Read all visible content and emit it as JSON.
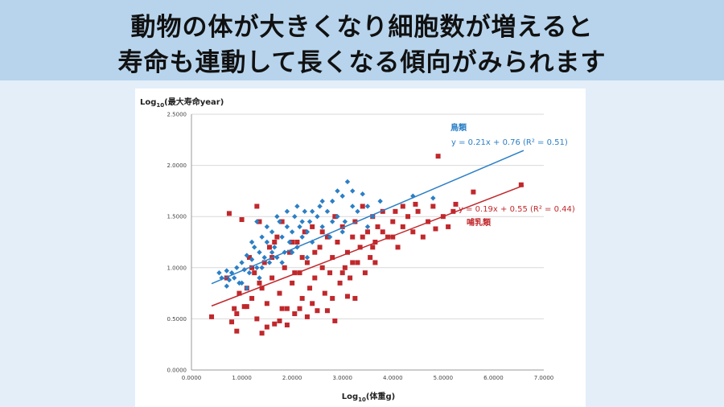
{
  "banner": {
    "line1": "動物の体が大きくなり細胞数が増えると",
    "line2": "寿命も連動して長くなる傾向がみられます"
  },
  "colors": {
    "bird": "#2b7fc6",
    "mammal": "#c0282c",
    "grid": "#d9d9d9"
  },
  "chart_data": {
    "type": "scatter",
    "ylabel_prefix": "Log",
    "ylabel_sub": "10",
    "ylabel_text": "(最大寿命year)",
    "xlabel_prefix": "Log",
    "xlabel_sub": "10",
    "xlabel_text": "(体重g)",
    "xlim": [
      0,
      7
    ],
    "ylim": [
      0,
      2.5
    ],
    "xticks": [
      "0.0000",
      "1.0000",
      "2.0000",
      "3.0000",
      "4.0000",
      "5.0000",
      "6.0000",
      "7.0000"
    ],
    "yticks": [
      "0.0000",
      "0.5000",
      "1.0000",
      "1.5000",
      "2.0000",
      "2.5000"
    ],
    "grid": "horizontal",
    "series": [
      {
        "name": "鳥類",
        "marker": "diamond",
        "equation": "y = 0.21x + 0.76 (R² = 0.51)",
        "trend": {
          "slope": 0.21,
          "intercept": 0.76,
          "x0": 0.4,
          "x1": 6.6
        },
        "points": [
          [
            0.55,
            0.95
          ],
          [
            0.6,
            0.9
          ],
          [
            0.7,
            0.97
          ],
          [
            0.75,
            0.88
          ],
          [
            0.8,
            0.95
          ],
          [
            0.85,
            0.9
          ],
          [
            0.9,
            1.0
          ],
          [
            0.95,
            0.85
          ],
          [
            1.0,
            1.05
          ],
          [
            1.05,
            0.98
          ],
          [
            1.1,
            1.12
          ],
          [
            1.15,
            0.95
          ],
          [
            1.2,
            1.08
          ],
          [
            1.25,
            1.2
          ],
          [
            1.3,
            1.0
          ],
          [
            1.35,
            1.15
          ],
          [
            1.4,
            1.3
          ],
          [
            1.45,
            1.1
          ],
          [
            1.5,
            1.25
          ],
          [
            1.55,
            1.05
          ],
          [
            1.6,
            1.35
          ],
          [
            1.65,
            1.2
          ],
          [
            1.7,
            1.1
          ],
          [
            1.75,
            1.45
          ],
          [
            1.8,
            1.3
          ],
          [
            1.85,
            1.15
          ],
          [
            1.9,
            1.4
          ],
          [
            1.95,
            1.25
          ],
          [
            2.0,
            1.35
          ],
          [
            2.05,
            1.5
          ],
          [
            2.1,
            1.2
          ],
          [
            2.15,
            1.4
          ],
          [
            2.2,
            1.3
          ],
          [
            2.25,
            1.55
          ],
          [
            2.3,
            1.35
          ],
          [
            2.35,
            1.45
          ],
          [
            2.4,
            1.25
          ],
          [
            2.5,
            1.5
          ],
          [
            2.55,
            1.6
          ],
          [
            2.6,
            1.4
          ],
          [
            2.7,
            1.55
          ],
          [
            2.75,
            1.3
          ],
          [
            2.8,
            1.65
          ],
          [
            2.9,
            1.5
          ],
          [
            3.0,
            1.7
          ],
          [
            3.05,
            1.45
          ],
          [
            3.1,
            1.84
          ],
          [
            3.2,
            1.6
          ],
          [
            3.3,
            1.55
          ],
          [
            3.4,
            1.72
          ],
          [
            3.5,
            1.6
          ],
          [
            3.6,
            1.5
          ],
          [
            3.75,
            1.65
          ],
          [
            1.0,
            0.85
          ],
          [
            1.2,
            1.25
          ],
          [
            1.4,
            1.0
          ],
          [
            1.6,
            1.15
          ],
          [
            1.8,
            1.05
          ],
          [
            2.0,
            1.15
          ],
          [
            2.2,
            1.45
          ],
          [
            2.4,
            1.55
          ],
          [
            2.6,
            1.65
          ],
          [
            2.8,
            1.45
          ],
          [
            3.0,
            1.35
          ],
          [
            3.2,
            1.75
          ],
          [
            1.3,
            1.45
          ],
          [
            1.5,
            1.4
          ],
          [
            1.7,
            1.5
          ],
          [
            1.9,
            1.55
          ],
          [
            2.1,
            1.6
          ],
          [
            1.1,
            0.8
          ],
          [
            2.3,
            1.1
          ],
          [
            4.4,
            1.7
          ],
          [
            4.8,
            1.68
          ],
          [
            0.7,
            0.82
          ],
          [
            1.35,
            0.9
          ],
          [
            2.9,
            1.75
          ],
          [
            3.5,
            1.4
          ]
        ]
      },
      {
        "name": "哺乳類",
        "marker": "square",
        "equation": "y = 0.19x + 0.55 (R² = 0.44)",
        "trend": {
          "slope": 0.19,
          "intercept": 0.55,
          "x0": 0.4,
          "x1": 6.6
        },
        "points": [
          [
            0.4,
            0.52
          ],
          [
            0.7,
            0.9
          ],
          [
            0.75,
            1.53
          ],
          [
            0.8,
            0.47
          ],
          [
            0.85,
            0.6
          ],
          [
            0.9,
            0.55
          ],
          [
            0.95,
            0.75
          ],
          [
            1.0,
            1.47
          ],
          [
            1.05,
            0.62
          ],
          [
            1.1,
            0.8
          ],
          [
            1.15,
            1.1
          ],
          [
            1.2,
            0.7
          ],
          [
            1.25,
            0.95
          ],
          [
            1.3,
            0.5
          ],
          [
            1.3,
            1.6
          ],
          [
            1.35,
            0.85
          ],
          [
            1.4,
            0.36
          ],
          [
            1.45,
            1.05
          ],
          [
            1.5,
            0.65
          ],
          [
            1.55,
            1.2
          ],
          [
            1.6,
            0.9
          ],
          [
            1.65,
            0.45
          ],
          [
            1.7,
            1.3
          ],
          [
            1.75,
            0.75
          ],
          [
            1.8,
            1.45
          ],
          [
            1.85,
            1.0
          ],
          [
            1.9,
            0.6
          ],
          [
            1.95,
            1.15
          ],
          [
            2.0,
            0.85
          ],
          [
            2.05,
            0.55
          ],
          [
            2.1,
            1.25
          ],
          [
            2.15,
            0.95
          ],
          [
            2.2,
            0.7
          ],
          [
            2.25,
            1.35
          ],
          [
            2.3,
            1.05
          ],
          [
            2.35,
            0.8
          ],
          [
            2.4,
            1.4
          ],
          [
            2.45,
            0.9
          ],
          [
            2.5,
            0.58
          ],
          [
            2.55,
            1.2
          ],
          [
            2.6,
            1.0
          ],
          [
            2.65,
            0.75
          ],
          [
            2.7,
            1.3
          ],
          [
            2.75,
            0.95
          ],
          [
            2.8,
            1.1
          ],
          [
            2.85,
            0.48
          ],
          [
            2.9,
            1.25
          ],
          [
            2.95,
            0.85
          ],
          [
            3.0,
            1.4
          ],
          [
            3.05,
            1.0
          ],
          [
            3.1,
            1.15
          ],
          [
            3.15,
            0.9
          ],
          [
            3.2,
            1.3
          ],
          [
            3.25,
            1.45
          ],
          [
            3.3,
            1.05
          ],
          [
            3.35,
            1.2
          ],
          [
            3.4,
            1.6
          ],
          [
            3.45,
            0.95
          ],
          [
            3.5,
            1.35
          ],
          [
            3.55,
            1.1
          ],
          [
            3.6,
            1.5
          ],
          [
            3.65,
            1.25
          ],
          [
            3.7,
            1.4
          ],
          [
            3.8,
            1.55
          ],
          [
            3.9,
            1.3
          ],
          [
            4.0,
            1.45
          ],
          [
            4.1,
            1.2
          ],
          [
            4.2,
            1.6
          ],
          [
            4.3,
            1.5
          ],
          [
            4.4,
            1.35
          ],
          [
            4.5,
            1.55
          ],
          [
            4.6,
            1.3
          ],
          [
            4.7,
            1.45
          ],
          [
            4.8,
            1.6
          ],
          [
            4.9,
            2.09
          ],
          [
            5.0,
            1.5
          ],
          [
            5.1,
            1.4
          ],
          [
            5.2,
            1.55
          ],
          [
            5.6,
            1.74
          ],
          [
            6.55,
            1.81
          ],
          [
            1.2,
            1.0
          ],
          [
            1.4,
            0.8
          ],
          [
            1.6,
            1.1
          ],
          [
            1.8,
            0.6
          ],
          [
            2.0,
            1.25
          ],
          [
            2.2,
            1.1
          ],
          [
            2.4,
            0.65
          ],
          [
            2.6,
            1.35
          ],
          [
            2.8,
            0.7
          ],
          [
            3.0,
            0.95
          ],
          [
            3.2,
            1.05
          ],
          [
            3.4,
            1.3
          ],
          [
            3.6,
            1.2
          ],
          [
            3.8,
            1.35
          ],
          [
            4.0,
            1.3
          ],
          [
            4.2,
            1.4
          ],
          [
            1.1,
            0.62
          ],
          [
            1.5,
            0.42
          ],
          [
            1.9,
            0.44
          ],
          [
            2.3,
            0.52
          ],
          [
            2.7,
            0.58
          ],
          [
            3.1,
            0.72
          ],
          [
            1.35,
            1.45
          ],
          [
            1.65,
            1.25
          ],
          [
            2.05,
            0.95
          ],
          [
            2.45,
            1.15
          ],
          [
            2.85,
            1.5
          ],
          [
            3.25,
            0.7
          ],
          [
            3.65,
            1.05
          ],
          [
            4.05,
            1.55
          ],
          [
            4.45,
            1.62
          ],
          [
            4.85,
            1.38
          ],
          [
            5.25,
            1.62
          ],
          [
            0.9,
            0.38
          ],
          [
            1.75,
            0.48
          ],
          [
            2.15,
            0.6
          ]
        ]
      }
    ]
  }
}
